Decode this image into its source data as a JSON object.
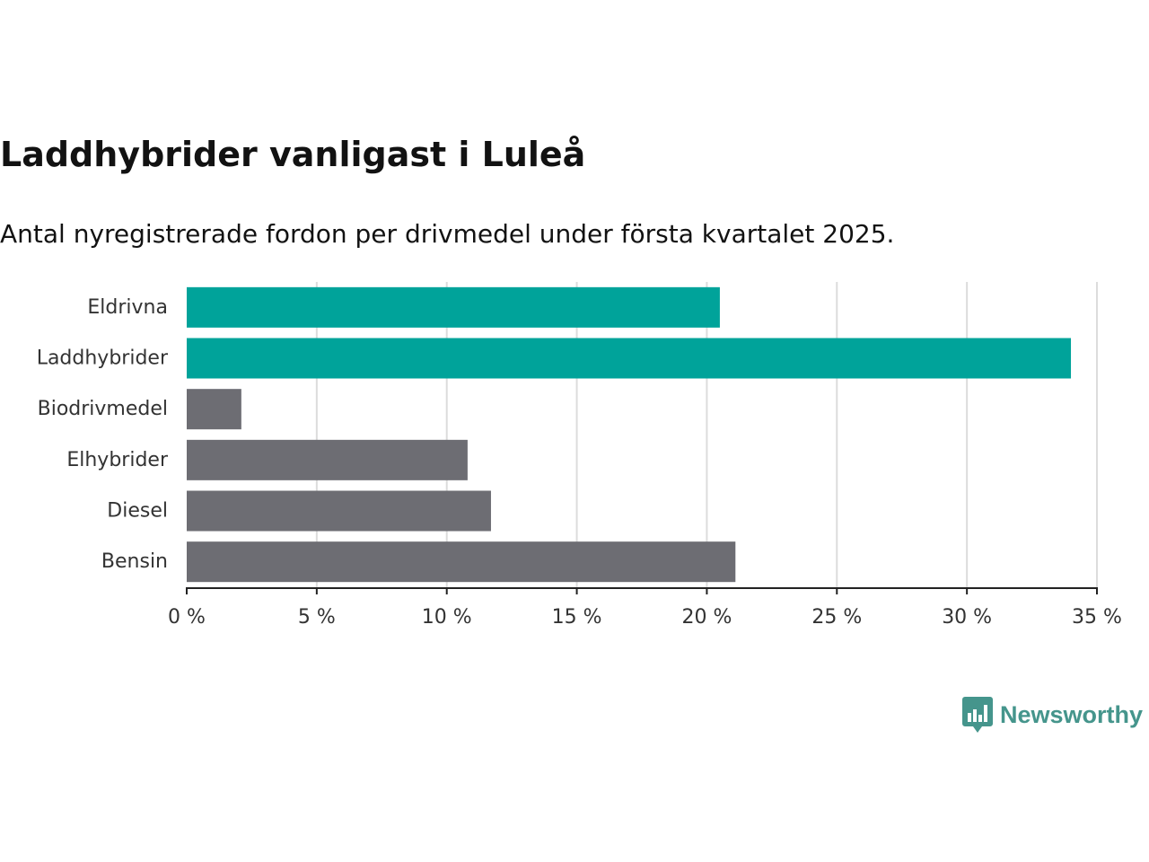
{
  "title": "Laddhybrider vanligast i Luleå",
  "subtitle": "Antal nyregistrerade fordon per drivmedel under första kvartalet 2025.",
  "logo": {
    "text": "Newsworthy",
    "icon": "newsworthy-chart-bubble-icon",
    "color": "#45958c"
  },
  "colors": {
    "highlight": "#00a39a",
    "default": "#6d6d73",
    "grid": "#dcdcdc",
    "axis": "#222222",
    "text": "#333333"
  },
  "chart_data": {
    "type": "bar",
    "orientation": "horizontal",
    "categories": [
      "Eldrivna",
      "Laddhybrider",
      "Biodrivmedel",
      "Elhybrider",
      "Diesel",
      "Bensin"
    ],
    "values": [
      20.5,
      34.0,
      2.1,
      10.8,
      11.7,
      21.1
    ],
    "highlighted": [
      true,
      true,
      false,
      false,
      false,
      false
    ],
    "x_ticks": [
      "0 %",
      "5 %",
      "10 %",
      "15 %",
      "20 %",
      "25 %",
      "30 %",
      "35 %"
    ],
    "xlim": [
      0,
      35
    ],
    "unit": "%",
    "grid": true
  }
}
